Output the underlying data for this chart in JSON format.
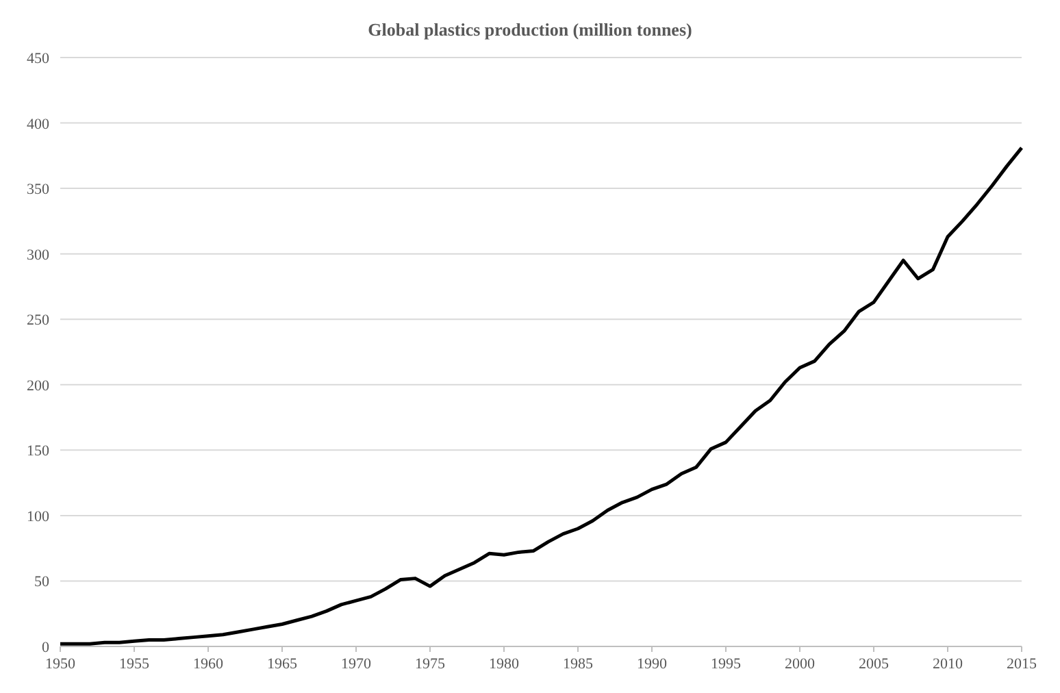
{
  "chart_data": {
    "type": "line",
    "title": "Global plastics production (million tonnes)",
    "x": [
      1950,
      1951,
      1952,
      1953,
      1954,
      1955,
      1956,
      1957,
      1958,
      1959,
      1960,
      1961,
      1962,
      1963,
      1964,
      1965,
      1966,
      1967,
      1968,
      1969,
      1970,
      1971,
      1972,
      1973,
      1974,
      1975,
      1976,
      1977,
      1978,
      1979,
      1980,
      1981,
      1982,
      1983,
      1984,
      1985,
      1986,
      1987,
      1988,
      1989,
      1990,
      1991,
      1992,
      1993,
      1994,
      1995,
      1996,
      1997,
      1998,
      1999,
      2000,
      2001,
      2002,
      2003,
      2004,
      2005,
      2006,
      2007,
      2008,
      2009,
      2010,
      2011,
      2012,
      2013,
      2014,
      2015
    ],
    "series": [
      {
        "color": "#000000",
        "values": [
          2,
          2,
          2,
          3,
          3,
          4,
          5,
          5,
          6,
          7,
          8,
          9,
          11,
          13,
          15,
          17,
          20,
          23,
          27,
          32,
          35,
          38,
          44,
          51,
          52,
          46,
          54,
          59,
          64,
          71,
          70,
          72,
          73,
          80,
          86,
          90,
          96,
          104,
          110,
          114,
          120,
          124,
          132,
          137,
          151,
          156,
          168,
          180,
          188,
          202,
          213,
          218,
          231,
          241,
          256,
          263,
          279,
          295,
          281,
          288,
          313,
          325,
          338,
          352,
          367,
          381
        ]
      }
    ],
    "xlim": [
      1950,
      2015
    ],
    "xticks": [
      1950,
      1955,
      1960,
      1965,
      1970,
      1975,
      1980,
      1985,
      1990,
      1995,
      2000,
      2005,
      2010,
      2015
    ],
    "ylim": [
      0,
      450
    ],
    "yticks": [
      0,
      50,
      100,
      150,
      200,
      250,
      300,
      350,
      400,
      450
    ],
    "grid": "y",
    "marker": "none",
    "line_style": "solid"
  }
}
